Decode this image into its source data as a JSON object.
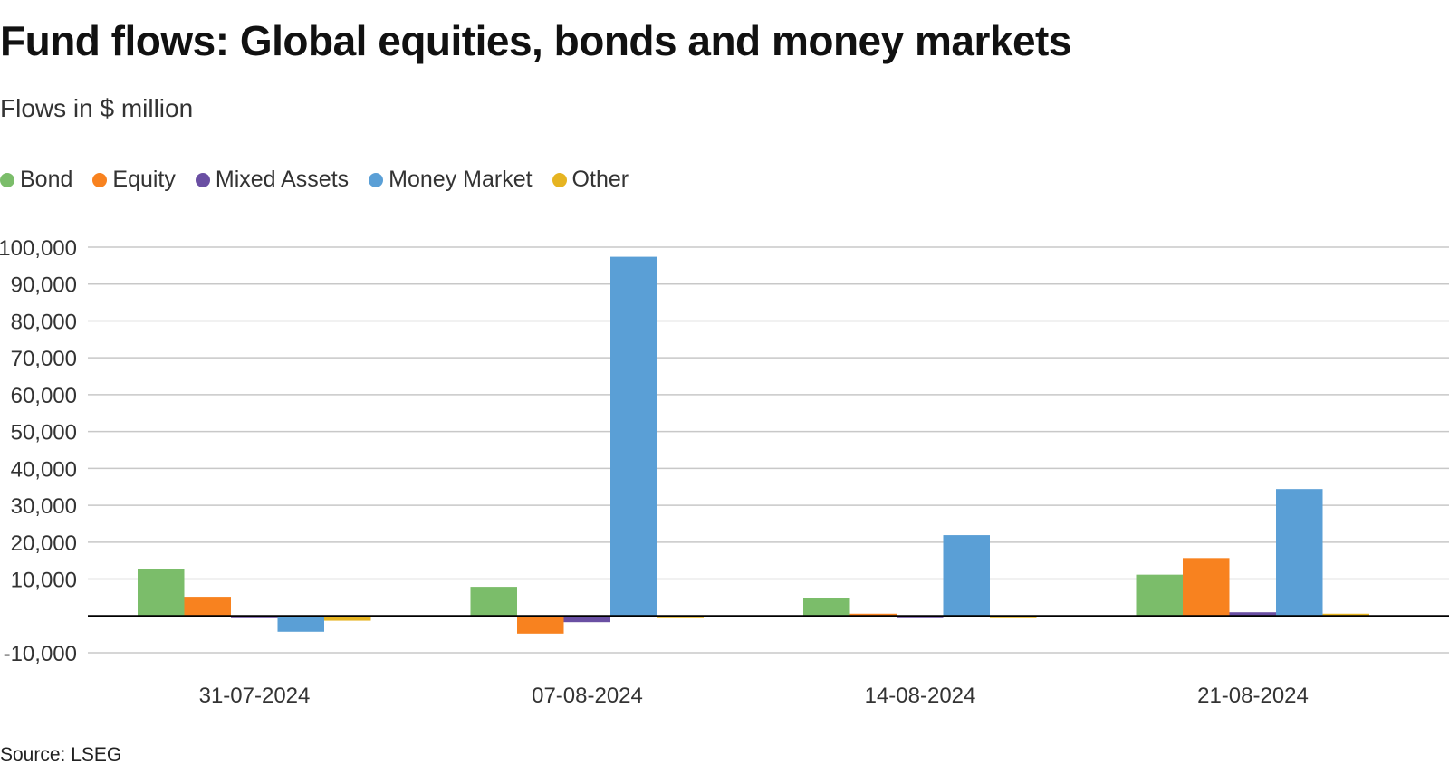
{
  "title": "Fund flows: Global equities, bonds and money markets",
  "subtitle": "Flows in $ million",
  "source": "Source: LSEG",
  "colors": {
    "Bond": "#7bbd6a",
    "Equity": "#f8821f",
    "Mixed Assets": "#6a4fa3",
    "Money Market": "#5a9fd6",
    "Other": "#e6b421",
    "gridline": "#c8c8c8",
    "zeroline": "#000000"
  },
  "chart_data": {
    "type": "bar",
    "categories": [
      "31-07-2024",
      "07-08-2024",
      "14-08-2024",
      "21-08-2024"
    ],
    "series": [
      {
        "name": "Bond",
        "values": [
          12700,
          7900,
          4800,
          11200
        ]
      },
      {
        "name": "Equity",
        "values": [
          5200,
          -4800,
          600,
          15700
        ]
      },
      {
        "name": "Mixed Assets",
        "values": [
          -500,
          -1700,
          -300,
          1000
        ]
      },
      {
        "name": "Money Market",
        "values": [
          -4300,
          97400,
          21900,
          34400
        ]
      },
      {
        "name": "Other",
        "values": [
          -1300,
          -400,
          -400,
          0
        ]
      }
    ],
    "yticks": [
      -10000,
      10000,
      20000,
      30000,
      40000,
      50000,
      60000,
      70000,
      80000,
      90000,
      100000
    ],
    "ytick_labels": [
      "-10,000",
      "10,000",
      "20,000",
      "30,000",
      "40,000",
      "50,000",
      "60,000",
      "70,000",
      "80,000",
      "90,000",
      "100,000"
    ],
    "ylim": [
      -10000,
      100000
    ],
    "grid": true,
    "legend_position": "top-left",
    "xlabel": "",
    "ylabel": ""
  }
}
